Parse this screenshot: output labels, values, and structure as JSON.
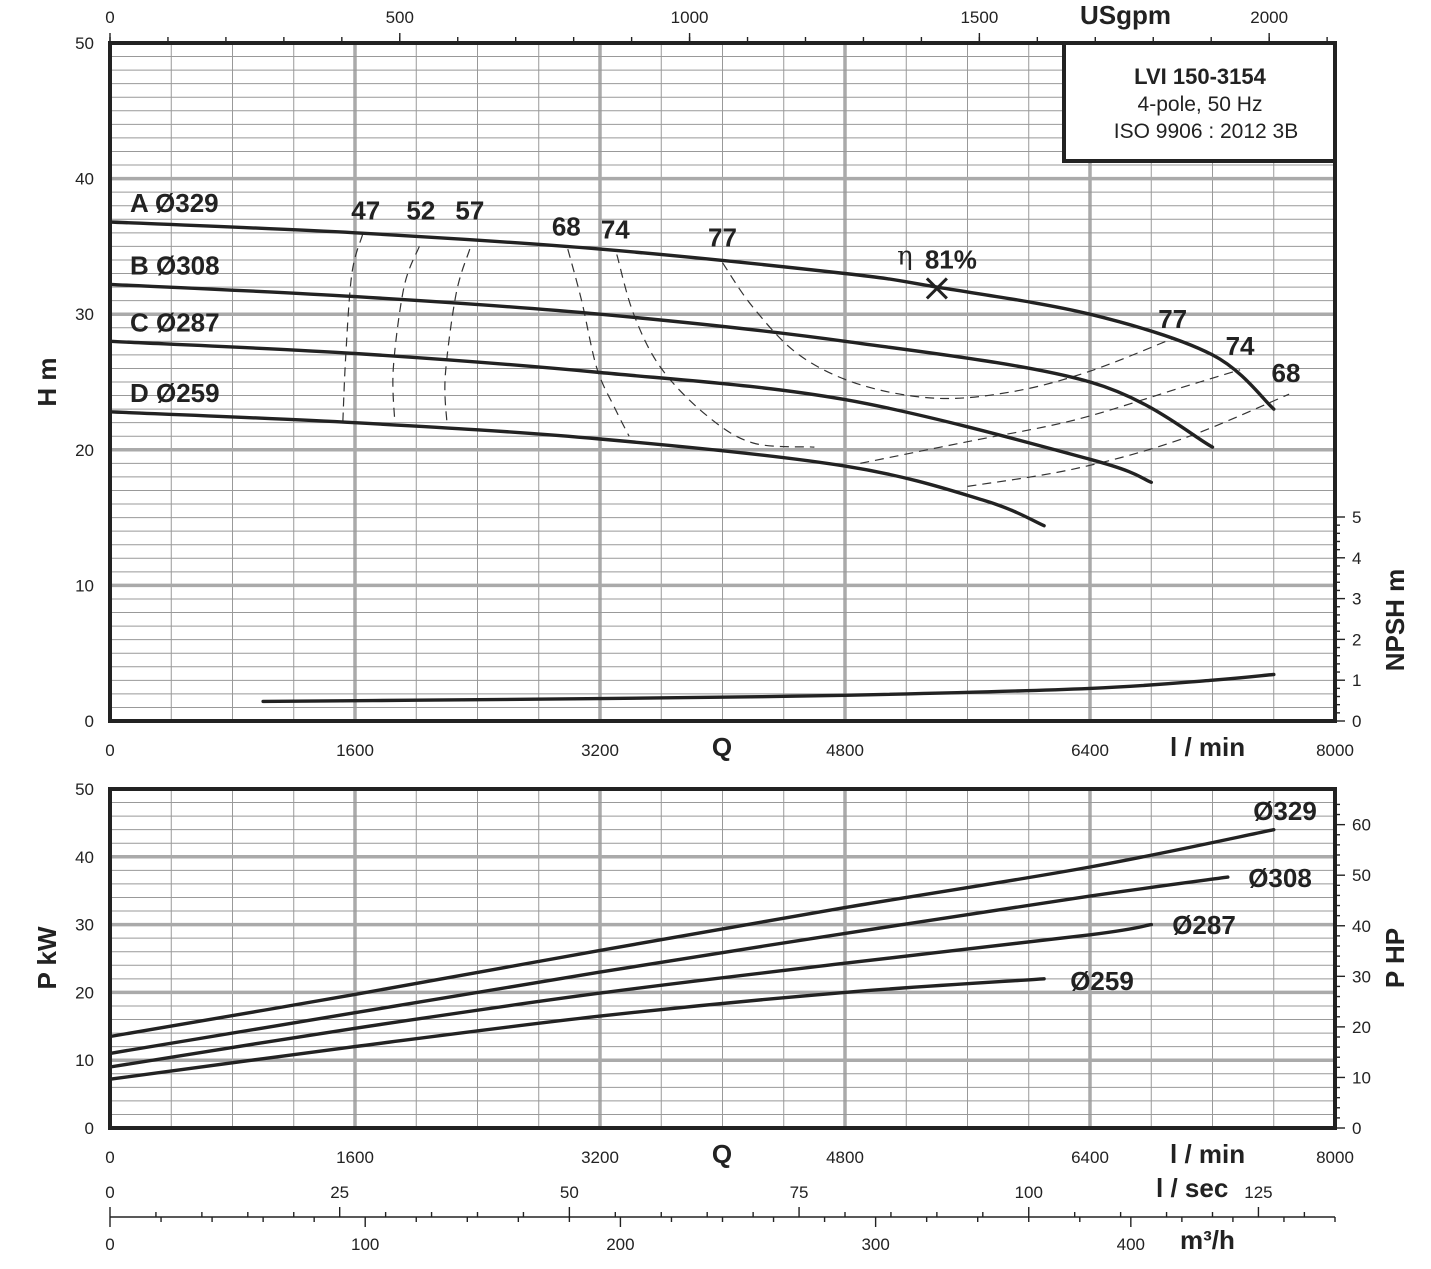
{
  "chart_data": [
    {
      "type": "line",
      "title": "",
      "info_box": {
        "model": "LVI 150-3154",
        "poles": "4-pole, 50 Hz",
        "standard": "ISO 9906 : 2012 3B"
      },
      "xlabel": "Q",
      "xunit": "l / min",
      "x2unit": "USgpm",
      "ylabel": "H m",
      "y2label": "NPSH m",
      "xlim": [
        0,
        8000
      ],
      "ylim": [
        0,
        50
      ],
      "x_ticks": [
        "0",
        "1600",
        "3200",
        "4800",
        "6400",
        "8000"
      ],
      "x2_ticks": [
        "0",
        "500",
        "1000",
        "1500",
        "2000"
      ],
      "y_ticks": [
        "0",
        "10",
        "20",
        "30",
        "40",
        "50"
      ],
      "y2_ticks": [
        "0",
        "1",
        "2",
        "3",
        "4",
        "5"
      ],
      "y2lim": [
        0,
        5
      ],
      "grid": true,
      "series": [
        {
          "name": "A Ø329",
          "x": [
            0,
            1600,
            3200,
            4800,
            5400,
            6400,
            7200,
            7600
          ],
          "values": [
            36.8,
            36.0,
            34.8,
            33.0,
            32.0,
            30.0,
            27.0,
            23.0
          ]
        },
        {
          "name": "B Ø308",
          "x": [
            0,
            1600,
            3200,
            4800,
            6400,
            7200
          ],
          "values": [
            32.2,
            31.3,
            30.0,
            28.0,
            25.0,
            20.2
          ]
        },
        {
          "name": "C Ø287",
          "x": [
            0,
            1600,
            3200,
            4800,
            6400,
            6800
          ],
          "values": [
            28.0,
            27.1,
            25.7,
            23.7,
            19.3,
            17.6
          ]
        },
        {
          "name": "D Ø259",
          "x": [
            0,
            1600,
            3200,
            4800,
            5700,
            6100
          ],
          "values": [
            22.8,
            22.0,
            20.8,
            18.8,
            16.3,
            14.4
          ]
        },
        {
          "name": "NPSH",
          "axis": "y2",
          "x": [
            1000,
            2000,
            3200,
            4800,
            6400,
            7200,
            7600
          ],
          "values": [
            0.48,
            0.51,
            0.55,
            0.63,
            0.8,
            1.0,
            1.14
          ]
        }
      ],
      "efficiency_labels": [
        {
          "text": "47",
          "x": 1670,
          "y": 37.0
        },
        {
          "text": "52",
          "x": 2030,
          "y": 37.0
        },
        {
          "text": "57",
          "x": 2350,
          "y": 37.0
        },
        {
          "text": "68",
          "x": 2980,
          "y": 35.8
        },
        {
          "text": "74",
          "x": 3300,
          "y": 35.6
        },
        {
          "text": "77",
          "x": 4000,
          "y": 35.0
        },
        {
          "text": "77",
          "x": 6940,
          "y": 29.0
        },
        {
          "text": "74",
          "x": 7380,
          "y": 27.0
        },
        {
          "text": "68",
          "x": 7680,
          "y": 25.0
        }
      ],
      "efficiency_curves": [
        {
          "label": "47",
          "x": [
            1650,
            1580,
            1540,
            1520
          ],
          "values": [
            35.9,
            33.0,
            27.0,
            22.0
          ]
        },
        {
          "label": "52",
          "x": [
            2020,
            1920,
            1850,
            1860
          ],
          "values": [
            35.0,
            32.0,
            26.0,
            22.0
          ]
        },
        {
          "label": "57",
          "x": [
            2350,
            2260,
            2190,
            2200
          ],
          "values": [
            34.8,
            31.5,
            25.5,
            22.0
          ]
        },
        {
          "label": "68",
          "x": [
            2990,
            3080,
            3180,
            3300,
            3390
          ],
          "values": [
            34.8,
            31.0,
            26.0,
            23.0,
            21.0
          ]
        },
        {
          "label": "74",
          "x": [
            3310,
            3420,
            3600,
            3900,
            4200,
            4600
          ],
          "values": [
            34.4,
            30.0,
            26.0,
            22.5,
            20.5,
            20.2
          ]
        },
        {
          "label": "77 (inner)",
          "x": [
            4000,
            4200,
            4500,
            4900,
            5400,
            5900,
            6400,
            6940
          ],
          "values": [
            33.8,
            30.5,
            27.0,
            24.8,
            23.8,
            24.3,
            25.8,
            28.2
          ]
        },
        {
          "label": "74 (outer)",
          "x": [
            4900,
            5600,
            6300,
            7000,
            7380
          ],
          "values": [
            19.0,
            20.6,
            22.2,
            24.6,
            25.9
          ]
        },
        {
          "label": "68 (outer)",
          "x": [
            5600,
            6300,
            7000,
            7700
          ],
          "values": [
            17.3,
            18.6,
            20.8,
            24.1
          ]
        }
      ],
      "bep": {
        "label": "81%",
        "symbol": "η",
        "x": 5400,
        "y": 31.9
      }
    },
    {
      "type": "line",
      "title": "",
      "xlabel": "Q",
      "xunit": "l / min",
      "x3unit": "l / sec",
      "x4unit": "m³/h",
      "ylabel": "P kW",
      "y2label": "P HP",
      "xlim": [
        0,
        8000
      ],
      "ylim": [
        0,
        50
      ],
      "y2lim": [
        0,
        67.05
      ],
      "x_ticks": [
        "0",
        "1600",
        "3200",
        "4800",
        "6400",
        "8000"
      ],
      "x3_ticks": [
        "0",
        "25",
        "50",
        "75",
        "100",
        "125"
      ],
      "x4_ticks": [
        "0",
        "100",
        "200",
        "300",
        "400"
      ],
      "y_ticks": [
        "0",
        "10",
        "20",
        "30",
        "40",
        "50"
      ],
      "y2_ticks": [
        "0",
        "10",
        "20",
        "30",
        "40",
        "50",
        "60"
      ],
      "grid": true,
      "series": [
        {
          "name": "Ø329",
          "x": [
            0,
            1600,
            3200,
            4800,
            6400,
            7600
          ],
          "values": [
            13.5,
            19.7,
            26.2,
            32.5,
            38.5,
            44.0
          ]
        },
        {
          "name": "Ø308",
          "x": [
            0,
            1600,
            3200,
            4800,
            6400,
            7300
          ],
          "values": [
            11.0,
            17.0,
            23.0,
            28.7,
            34.2,
            37.0
          ]
        },
        {
          "name": "Ø287",
          "x": [
            0,
            1600,
            3200,
            4800,
            6400,
            6800
          ],
          "values": [
            9.0,
            14.7,
            19.9,
            24.3,
            28.5,
            30.0
          ]
        },
        {
          "name": "Ø259",
          "x": [
            0,
            1600,
            3200,
            4800,
            6100
          ],
          "values": [
            7.2,
            12.0,
            16.5,
            20.0,
            22.0
          ]
        }
      ]
    }
  ]
}
